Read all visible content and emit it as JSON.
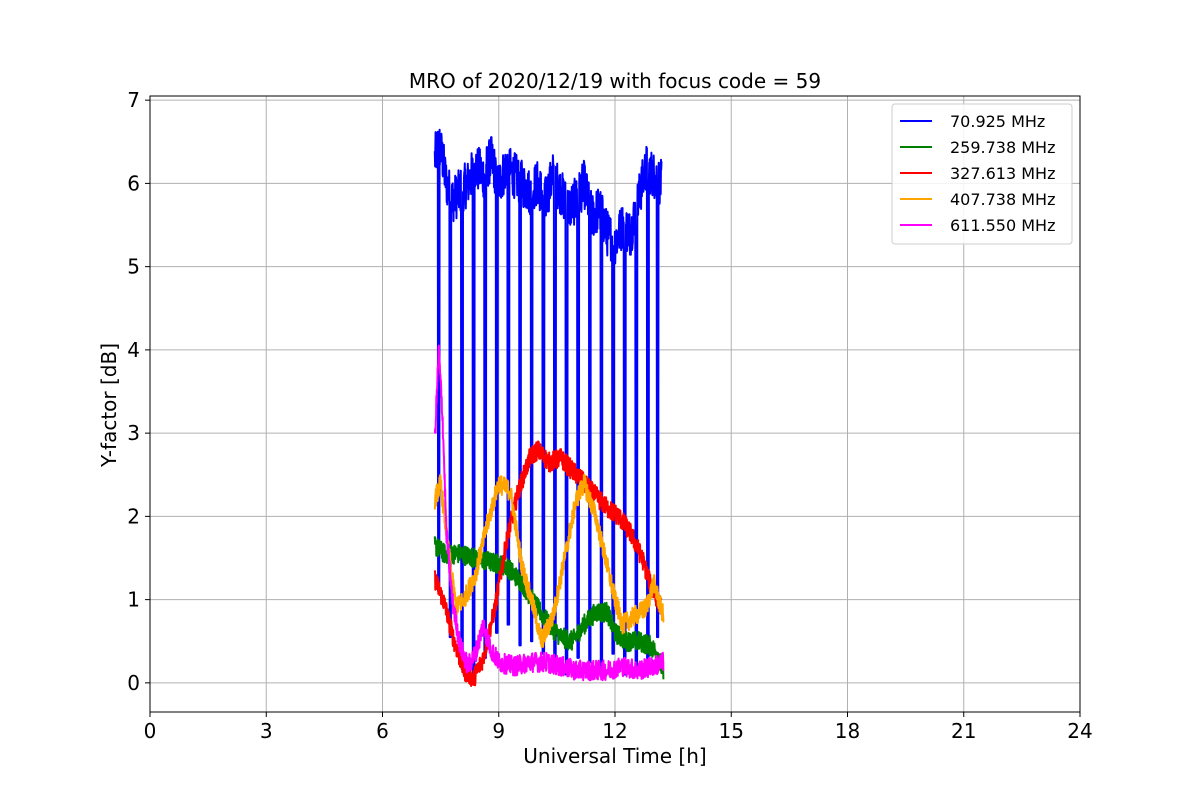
{
  "chart_data": {
    "type": "line",
    "title": "MRO of 2020/12/19 with focus code = 59",
    "xlabel": "Universal Time [h]",
    "ylabel": "Y-factor [dB]",
    "xlim": [
      0,
      24
    ],
    "ylim": [
      -0.35,
      7.05
    ],
    "xticks": [
      0,
      3,
      6,
      9,
      12,
      15,
      18,
      21,
      24
    ],
    "yticks": [
      0,
      1,
      2,
      3,
      4,
      5,
      6,
      7
    ],
    "grid": true,
    "legend_position": "top-right",
    "series": [
      {
        "name": "70.925 MHz",
        "legend_label": " 70.925 MHz",
        "color": "#0000ff",
        "segments": [
          {
            "x": [
              7.35,
              7.45,
              7.55,
              7.65,
              7.8,
              8.0,
              8.2,
              8.4,
              8.6,
              8.8,
              9.0,
              9.2,
              9.4,
              9.6,
              9.8,
              10.0,
              10.2,
              10.4,
              10.6,
              10.8,
              11.0,
              11.2,
              11.4,
              11.6,
              11.8,
              12.0,
              12.2,
              12.4,
              12.6,
              12.8,
              13.0,
              13.2
            ],
            "y": [
              6.3,
              6.5,
              6.3,
              6.0,
              5.8,
              5.9,
              6.0,
              6.2,
              6.1,
              6.3,
              6.0,
              6.2,
              6.1,
              6.0,
              5.9,
              6.0,
              5.8,
              6.1,
              5.9,
              5.7,
              5.8,
              6.0,
              5.6,
              5.7,
              5.4,
              5.3,
              5.5,
              5.4,
              5.8,
              6.2,
              6.1,
              6.0
            ]
          }
        ],
        "dips": [
          {
            "x": 7.45,
            "y": 1.1
          },
          {
            "x": 7.75,
            "y": 0.55
          },
          {
            "x": 8.05,
            "y": 0.3
          },
          {
            "x": 8.35,
            "y": 0.05
          },
          {
            "x": 8.65,
            "y": 0.3
          },
          {
            "x": 8.95,
            "y": 0.6
          },
          {
            "x": 9.25,
            "y": 0.7
          },
          {
            "x": 9.55,
            "y": 0.45
          },
          {
            "x": 9.85,
            "y": 0.5
          },
          {
            "x": 10.15,
            "y": 0.35
          },
          {
            "x": 10.45,
            "y": 0.2
          },
          {
            "x": 10.75,
            "y": 0.1
          },
          {
            "x": 11.05,
            "y": 0.3
          },
          {
            "x": 11.35,
            "y": 0.25
          },
          {
            "x": 11.65,
            "y": 0.1
          },
          {
            "x": 11.95,
            "y": 0.35
          },
          {
            "x": 12.25,
            "y": 0.1
          },
          {
            "x": 12.55,
            "y": 0.15
          },
          {
            "x": 12.85,
            "y": 0.25
          },
          {
            "x": 13.1,
            "y": 0.55
          }
        ]
      },
      {
        "name": "259.738 MHz",
        "legend_label": "259.738 MHz",
        "color": "#008000",
        "segments": [
          {
            "x": [
              7.35,
              7.6,
              8.0,
              8.4,
              8.8,
              9.2,
              9.6,
              10.0,
              10.3,
              10.6,
              10.9,
              11.2,
              11.5,
              11.8,
              12.0,
              12.3,
              12.6,
              12.9,
              13.1,
              13.25
            ],
            "y": [
              1.65,
              1.55,
              1.55,
              1.5,
              1.45,
              1.4,
              1.2,
              0.9,
              0.7,
              0.55,
              0.5,
              0.7,
              0.85,
              0.85,
              0.6,
              0.5,
              0.5,
              0.45,
              0.35,
              0.1
            ]
          }
        ]
      },
      {
        "name": "327.613 MHz",
        "legend_label": "327.613 MHz",
        "color": "#ff0000",
        "segments": [
          {
            "x": [
              7.35,
              7.6,
              7.85,
              8.1,
              8.35,
              8.6,
              8.9,
              9.2,
              9.5,
              9.8,
              10.0,
              10.3,
              10.6,
              10.9,
              11.2,
              11.5,
              11.8,
              12.1,
              12.4,
              12.7,
              12.9,
              13.2
            ],
            "y": [
              1.25,
              0.95,
              0.5,
              0.15,
              0.05,
              0.3,
              0.9,
              1.7,
              2.3,
              2.7,
              2.8,
              2.65,
              2.7,
              2.55,
              2.4,
              2.25,
              2.1,
              2.0,
              1.8,
              1.5,
              1.2,
              0.9
            ]
          }
        ]
      },
      {
        "name": "407.738 MHz",
        "legend_label": "407.738 MHz",
        "color": "#ffa500",
        "segments": [
          {
            "x": [
              7.35,
              7.5,
              7.7,
              7.9,
              8.1,
              8.4,
              8.7,
              9.0,
              9.3,
              9.6,
              9.9,
              10.1,
              10.4,
              10.7,
              11.0,
              11.2,
              11.5,
              11.8,
              12.0,
              12.2,
              12.5,
              12.8,
              13.0,
              13.25
            ],
            "y": [
              2.2,
              2.4,
              1.6,
              0.9,
              1.0,
              1.3,
              1.9,
              2.4,
              2.3,
              1.4,
              0.9,
              0.5,
              0.8,
              1.5,
              2.2,
              2.4,
              2.0,
              1.4,
              1.0,
              0.7,
              0.8,
              0.9,
              1.2,
              0.8
            ]
          }
        ]
      },
      {
        "name": "611.550 MHz",
        "legend_label": "611.550 MHz",
        "color": "#ff00ff",
        "segments": [
          {
            "x": [
              7.35,
              7.45,
              7.55,
              7.65,
              7.8,
              8.0,
              8.2,
              8.4,
              8.6,
              8.8,
              9.0,
              9.4,
              9.8,
              10.2,
              10.6,
              11.0,
              11.4,
              11.8,
              12.2,
              12.6,
              13.0,
              13.25
            ],
            "y": [
              2.9,
              4.0,
              3.2,
              1.8,
              1.0,
              0.45,
              0.2,
              0.35,
              0.7,
              0.4,
              0.25,
              0.2,
              0.25,
              0.25,
              0.2,
              0.15,
              0.15,
              0.15,
              0.2,
              0.15,
              0.2,
              0.25
            ]
          }
        ]
      }
    ]
  }
}
